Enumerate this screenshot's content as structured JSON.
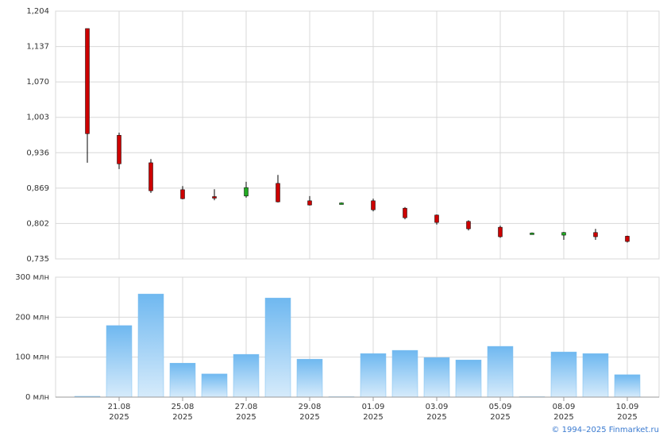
{
  "chart_data": [
    {
      "type": "candlestick",
      "categories": [
        null,
        "21.08 2025",
        null,
        "25.08 2025",
        null,
        "27.08 2025",
        null,
        "29.08 2025",
        null,
        "01.09 2025",
        null,
        "03.09 2025",
        null,
        "05.09 2025",
        null,
        "08.09 2025",
        null,
        "10.09 2025"
      ],
      "open": [
        1.171,
        0.969,
        0.917,
        0.866,
        0.853,
        0.854,
        0.878,
        0.845,
        0.839,
        0.845,
        0.831,
        0.818,
        0.806,
        0.795,
        0.782,
        0.78,
        0.785,
        0.778
      ],
      "high": [
        1.171,
        0.974,
        0.924,
        0.873,
        0.867,
        0.881,
        0.894,
        0.854,
        0.842,
        0.849,
        0.833,
        0.819,
        0.808,
        0.798,
        0.785,
        0.786,
        0.792,
        0.779
      ],
      "low": [
        0.917,
        0.905,
        0.86,
        0.848,
        0.846,
        0.851,
        0.842,
        0.836,
        0.838,
        0.825,
        0.81,
        0.8,
        0.789,
        0.775,
        0.782,
        0.771,
        0.771,
        0.766
      ],
      "close": [
        0.972,
        0.915,
        0.864,
        0.849,
        0.851,
        0.87,
        0.843,
        0.837,
        0.841,
        0.828,
        0.813,
        0.804,
        0.792,
        0.777,
        0.784,
        0.785,
        0.777,
        0.768
      ],
      "up_color": "#22aa22",
      "down_color": "#cc0000",
      "ylim": [
        0.735,
        1.204
      ],
      "yticks": [
        {
          "value": 0.735,
          "label": "0,735"
        },
        {
          "value": 0.802,
          "label": "0,802"
        },
        {
          "value": 0.869,
          "label": "0,869"
        },
        {
          "value": 0.936,
          "label": "0,936"
        },
        {
          "value": 1.003,
          "label": "1,003"
        },
        {
          "value": 1.07,
          "label": "1,070"
        },
        {
          "value": 1.137,
          "label": "1,137"
        },
        {
          "value": 1.204,
          "label": "1,204"
        }
      ],
      "grid": true
    },
    {
      "type": "bar",
      "values": [
        2,
        179,
        258,
        85,
        58,
        107,
        248,
        95,
        1,
        109,
        117,
        99,
        93,
        127,
        1,
        113,
        109,
        56
      ],
      "color": "#7dbff0",
      "ylim": [
        0,
        300
      ],
      "yticks": [
        {
          "value": 0,
          "label": "0 млн"
        },
        {
          "value": 100,
          "label": "100 млн"
        },
        {
          "value": 200,
          "label": "200 млн"
        },
        {
          "value": 300,
          "label": "300 млн"
        }
      ],
      "grid": true
    }
  ],
  "footer": "© 1994–2025 Finmarket.ru"
}
